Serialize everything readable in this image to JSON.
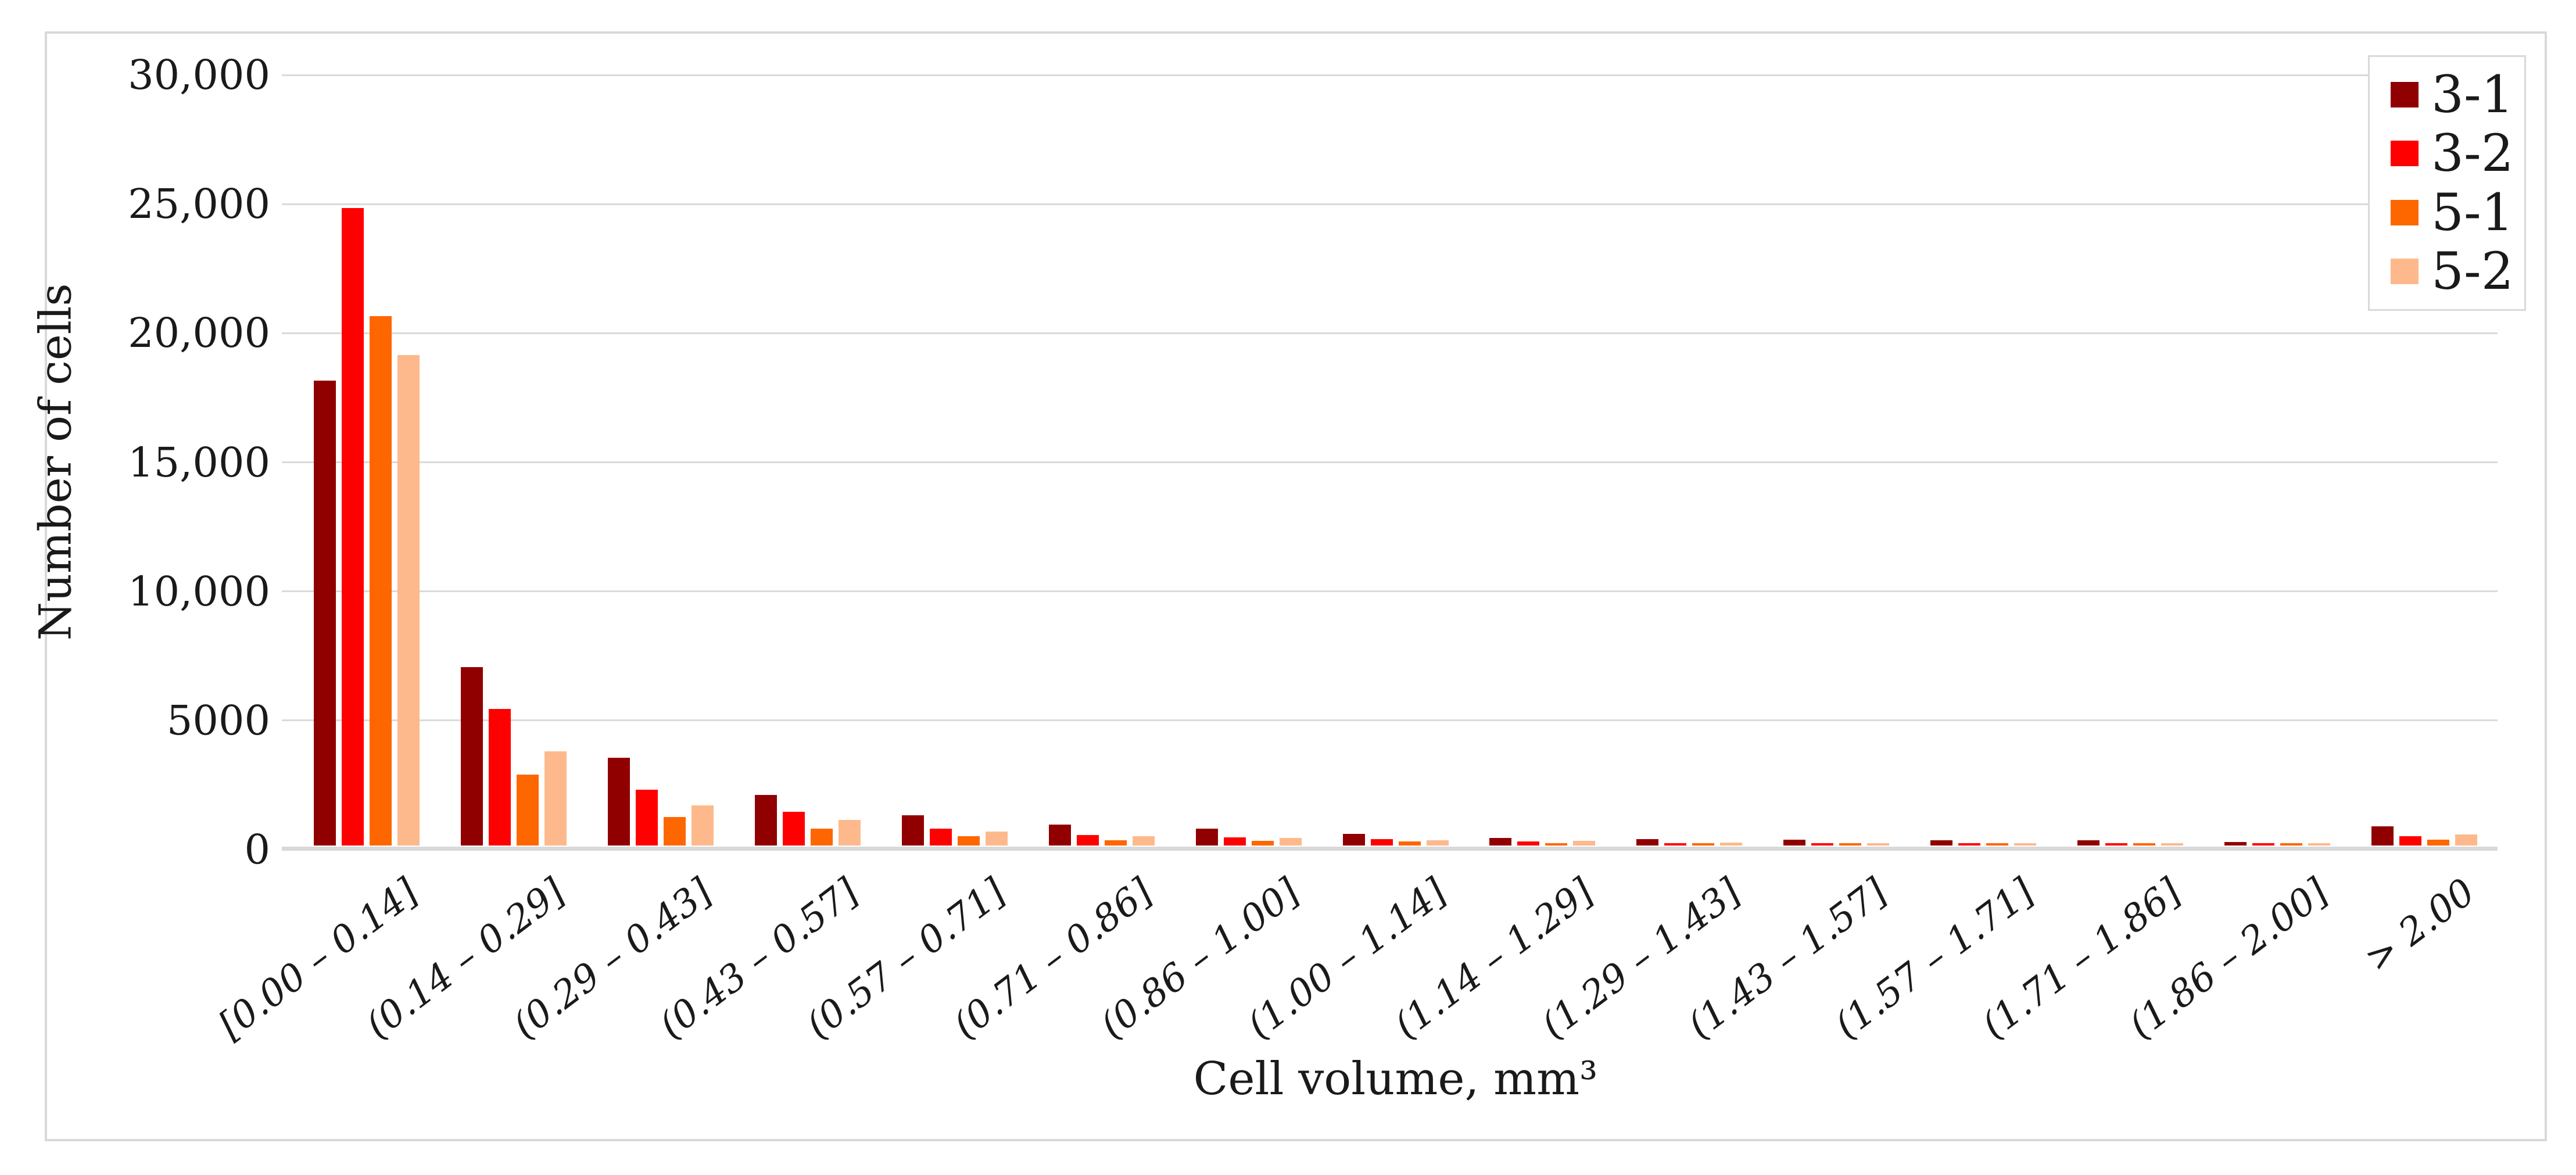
{
  "chart_data": {
    "type": "bar",
    "title": "",
    "xlabel": "Cell volume, mm³",
    "ylabel": "Number of cells",
    "ylim": [
      0,
      30000
    ],
    "ytick_interval": 5000,
    "ytick_labels": [
      "0",
      "5000",
      "10,000",
      "15,000",
      "20,000",
      "25,000",
      "30,000"
    ],
    "grid": true,
    "legend_position": "top-right",
    "categories": [
      "[0.00 – 0.14]",
      "(0.14 – 0.29]",
      "(0.29 – 0.43]",
      "(0.43 – 0.57]",
      "(0.57 – 0.71]",
      "(0.71 – 0.86]",
      "(0.86 – 1.00]",
      "(1.00 – 1.14]",
      "(1.14 – 1.29]",
      "(1.29 – 1.43]",
      "(1.43 – 1.57]",
      "(1.57 – 1.71]",
      "(1.71 – 1.86]",
      "(1.86 – 2.00]",
      "> 2.00"
    ],
    "series": [
      {
        "name": "3-1",
        "color": "#910000",
        "values": [
          18000,
          6900,
          3400,
          1950,
          1170,
          820,
          650,
          440,
          300,
          255,
          225,
          210,
          200,
          135,
          750
        ]
      },
      {
        "name": "3-2",
        "color": "#FF0000",
        "values": [
          24700,
          5300,
          2150,
          1300,
          650,
          400,
          310,
          240,
          150,
          100,
          100,
          80,
          75,
          60,
          370
        ]
      },
      {
        "name": "5-1",
        "color": "#FE6600",
        "values": [
          20500,
          2750,
          1100,
          650,
          350,
          200,
          170,
          160,
          100,
          60,
          45,
          45,
          40,
          25,
          230
        ]
      },
      {
        "name": "5-2",
        "color": "#FDB98B",
        "values": [
          19000,
          3650,
          1550,
          980,
          530,
          360,
          300,
          200,
          190,
          105,
          65,
          60,
          60,
          40,
          420
        ]
      }
    ]
  },
  "colors": {
    "gridline": "#DADADA",
    "axis_line": "#D9D9D9",
    "figure_border": "#D9D9D9",
    "text": "#1A1A1A"
  }
}
